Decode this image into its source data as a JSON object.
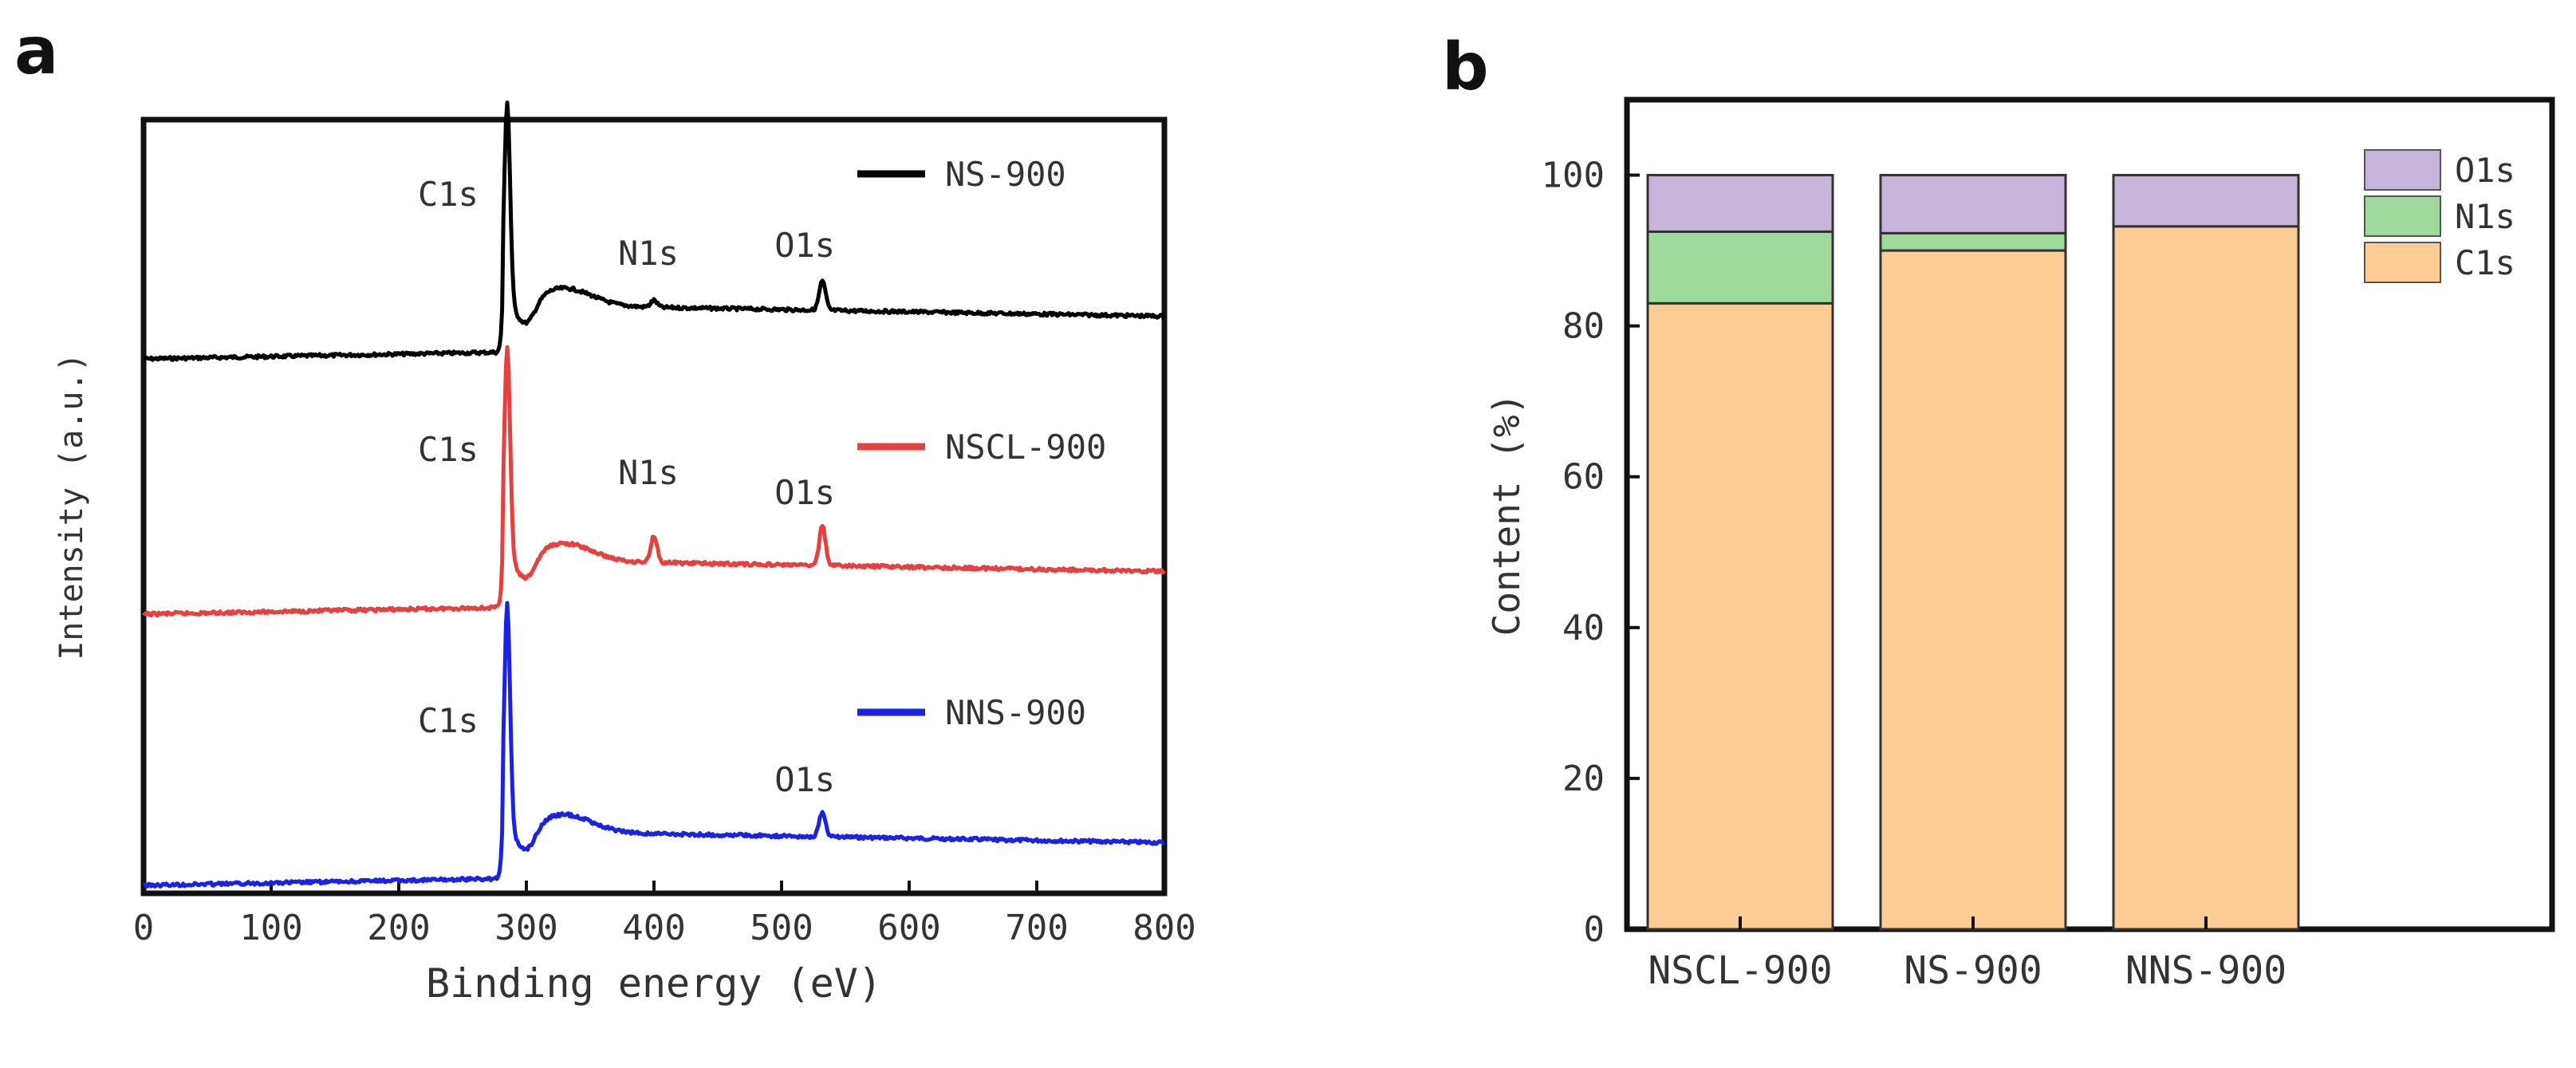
{
  "chart_data": [
    {
      "panel": "a",
      "type": "line",
      "xlabel": "Binding energy (eV)",
      "ylabel": "Intensity (a.u.)",
      "xlim": [
        0,
        800
      ],
      "xticks": [
        0,
        100,
        200,
        300,
        400,
        500,
        600,
        700,
        800
      ],
      "yticks_shown": false,
      "grid": false,
      "legend_placement": "per-series, right of each trace",
      "series": [
        {
          "name": "NS-900",
          "color": "#000000",
          "peaks": [
            {
              "label": "C1s",
              "x": 285,
              "height": 0.95
            },
            {
              "label": "N1s",
              "x": 400,
              "height": 0.04
            },
            {
              "label": "O1s",
              "x": 532,
              "height": 0.17
            }
          ]
        },
        {
          "name": "NSCL-900",
          "color": "#e8403f",
          "peaks": [
            {
              "label": "C1s",
              "x": 285,
              "height": 0.95
            },
            {
              "label": "N1s",
              "x": 400,
              "height": 0.15
            },
            {
              "label": "O1s",
              "x": 532,
              "height": 0.22
            }
          ]
        },
        {
          "name": "NNS-900",
          "color": "#1a22e8",
          "peaks": [
            {
              "label": "C1s",
              "x": 285,
              "height": 0.95
            },
            {
              "label": "O1s",
              "x": 532,
              "height": 0.13
            }
          ]
        }
      ]
    },
    {
      "panel": "b",
      "type": "bar",
      "stacked": true,
      "xlabel": "",
      "ylabel": "Content (%)",
      "ylim": [
        0,
        110
      ],
      "yticks": [
        0,
        20,
        40,
        60,
        80,
        100
      ],
      "categories": [
        "NSCL-900",
        "NS-900",
        "NNS-900"
      ],
      "legend_placement": "top-right",
      "grid": false,
      "series": [
        {
          "name": "C1s",
          "color": "#fdcb94",
          "values": [
            83.0,
            90.0,
            93.2
          ]
        },
        {
          "name": "N1s",
          "color": "#9fd99c",
          "values": [
            9.5,
            2.3,
            0.0
          ]
        },
        {
          "name": "O1s",
          "color": "#c7b4da",
          "values": [
            7.5,
            7.7,
            6.8
          ]
        }
      ]
    }
  ]
}
